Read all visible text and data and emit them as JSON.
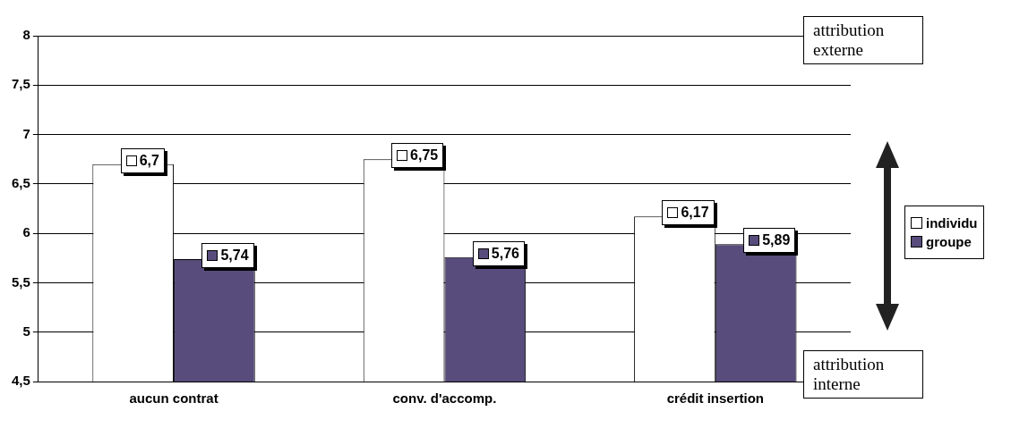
{
  "chart_data": {
    "type": "bar",
    "categories": [
      "aucun contrat",
      "conv. d'accomp.",
      "crédit insertion"
    ],
    "series": [
      {
        "name": "individu",
        "color": "#ffffff",
        "values": [
          6.7,
          6.75,
          6.17
        ],
        "value_labels": [
          "6,7",
          "6,75",
          "6,17"
        ]
      },
      {
        "name": "groupe",
        "color": "#584c7c",
        "values": [
          5.74,
          5.76,
          5.89
        ],
        "value_labels": [
          "5,74",
          "5,76",
          "5,89"
        ]
      }
    ],
    "ylim": [
      4.5,
      8
    ],
    "yticks": [
      {
        "value": 4.5,
        "label": "4,5"
      },
      {
        "value": 5,
        "label": "5"
      },
      {
        "value": 5.5,
        "label": "5,5"
      },
      {
        "value": 6,
        "label": "6"
      },
      {
        "value": 6.5,
        "label": "6,5"
      },
      {
        "value": 7,
        "label": "7"
      },
      {
        "value": 7.5,
        "label": "7,5"
      },
      {
        "value": 8,
        "label": "8"
      }
    ],
    "grid": "y",
    "legend": "right",
    "annotations": [
      "attribution externe",
      "attribution interne"
    ]
  }
}
